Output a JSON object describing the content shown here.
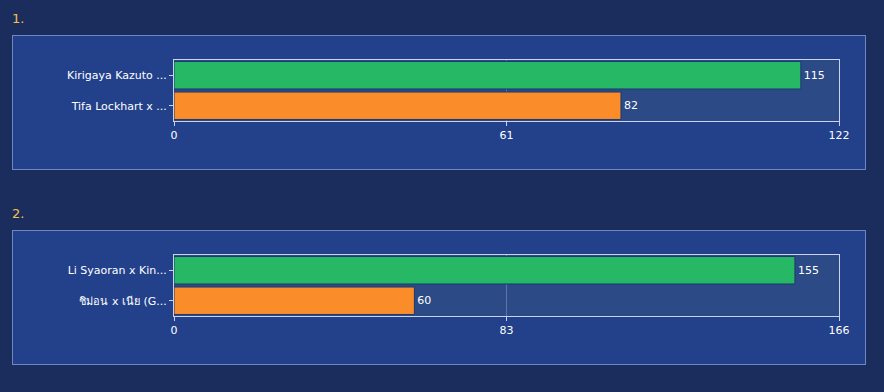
{
  "chart_data": [
    {
      "type": "bar",
      "title": "1.",
      "orientation": "horizontal",
      "data_labels": true,
      "grid": true,
      "categories": [
        "Kirigaya Kazuto ...",
        "Tifa Lockhart x ..."
      ],
      "values": [
        115,
        82
      ],
      "colors": [
        "#27b865",
        "#fb8c2a"
      ],
      "xlim": [
        0,
        122
      ],
      "xticks": [
        0,
        61,
        122
      ]
    },
    {
      "type": "bar",
      "title": "2.",
      "orientation": "horizontal",
      "data_labels": true,
      "grid": true,
      "categories": [
        "Li Syaoran x Kin...",
        "ชิม่อน x เนีย (G..."
      ],
      "values": [
        155,
        60
      ],
      "colors": [
        "#27b865",
        "#fb8c2a"
      ],
      "xlim": [
        0,
        166
      ],
      "xticks": [
        0,
        83,
        166
      ]
    }
  ]
}
